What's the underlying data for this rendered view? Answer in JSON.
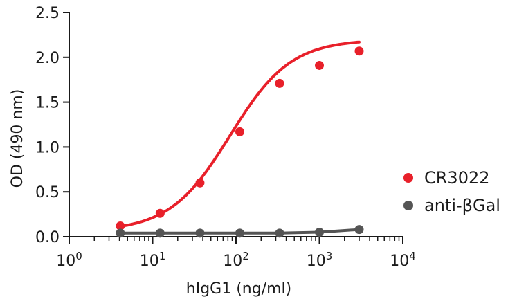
{
  "chart_data": {
    "type": "scatter",
    "xlabel": "hIgG1 (ng/ml)",
    "ylabel": "OD (490 nm)",
    "xscale": "log",
    "xlim": [
      1,
      10000
    ],
    "ylim": [
      0,
      2.5
    ],
    "x_ticks": [
      {
        "base": "10",
        "exp": "0"
      },
      {
        "base": "10",
        "exp": "1"
      },
      {
        "base": "10",
        "exp": "2"
      },
      {
        "base": "10",
        "exp": "3"
      },
      {
        "base": "10",
        "exp": "4"
      }
    ],
    "y_ticks": [
      "0.0",
      "0.5",
      "1.0",
      "1.5",
      "2.0",
      "2.5"
    ],
    "y_tick_values": [
      0,
      0.5,
      1.0,
      1.5,
      2.0,
      2.5
    ],
    "grid": false,
    "legend_position": "right",
    "series": [
      {
        "name": "CR3022",
        "color": "#e8202a",
        "fit": "sigmoidal",
        "x": [
          4.1,
          12.3,
          37,
          111,
          333,
          1000,
          3000
        ],
        "y": [
          0.12,
          0.26,
          0.6,
          1.17,
          1.71,
          1.91,
          2.07
        ]
      },
      {
        "name": "anti-βGal",
        "color": "#555555",
        "fit": "line",
        "x": [
          4.1,
          12.3,
          37,
          111,
          333,
          1000,
          3000
        ],
        "y": [
          0.04,
          0.04,
          0.04,
          0.04,
          0.04,
          0.05,
          0.08
        ]
      }
    ]
  }
}
